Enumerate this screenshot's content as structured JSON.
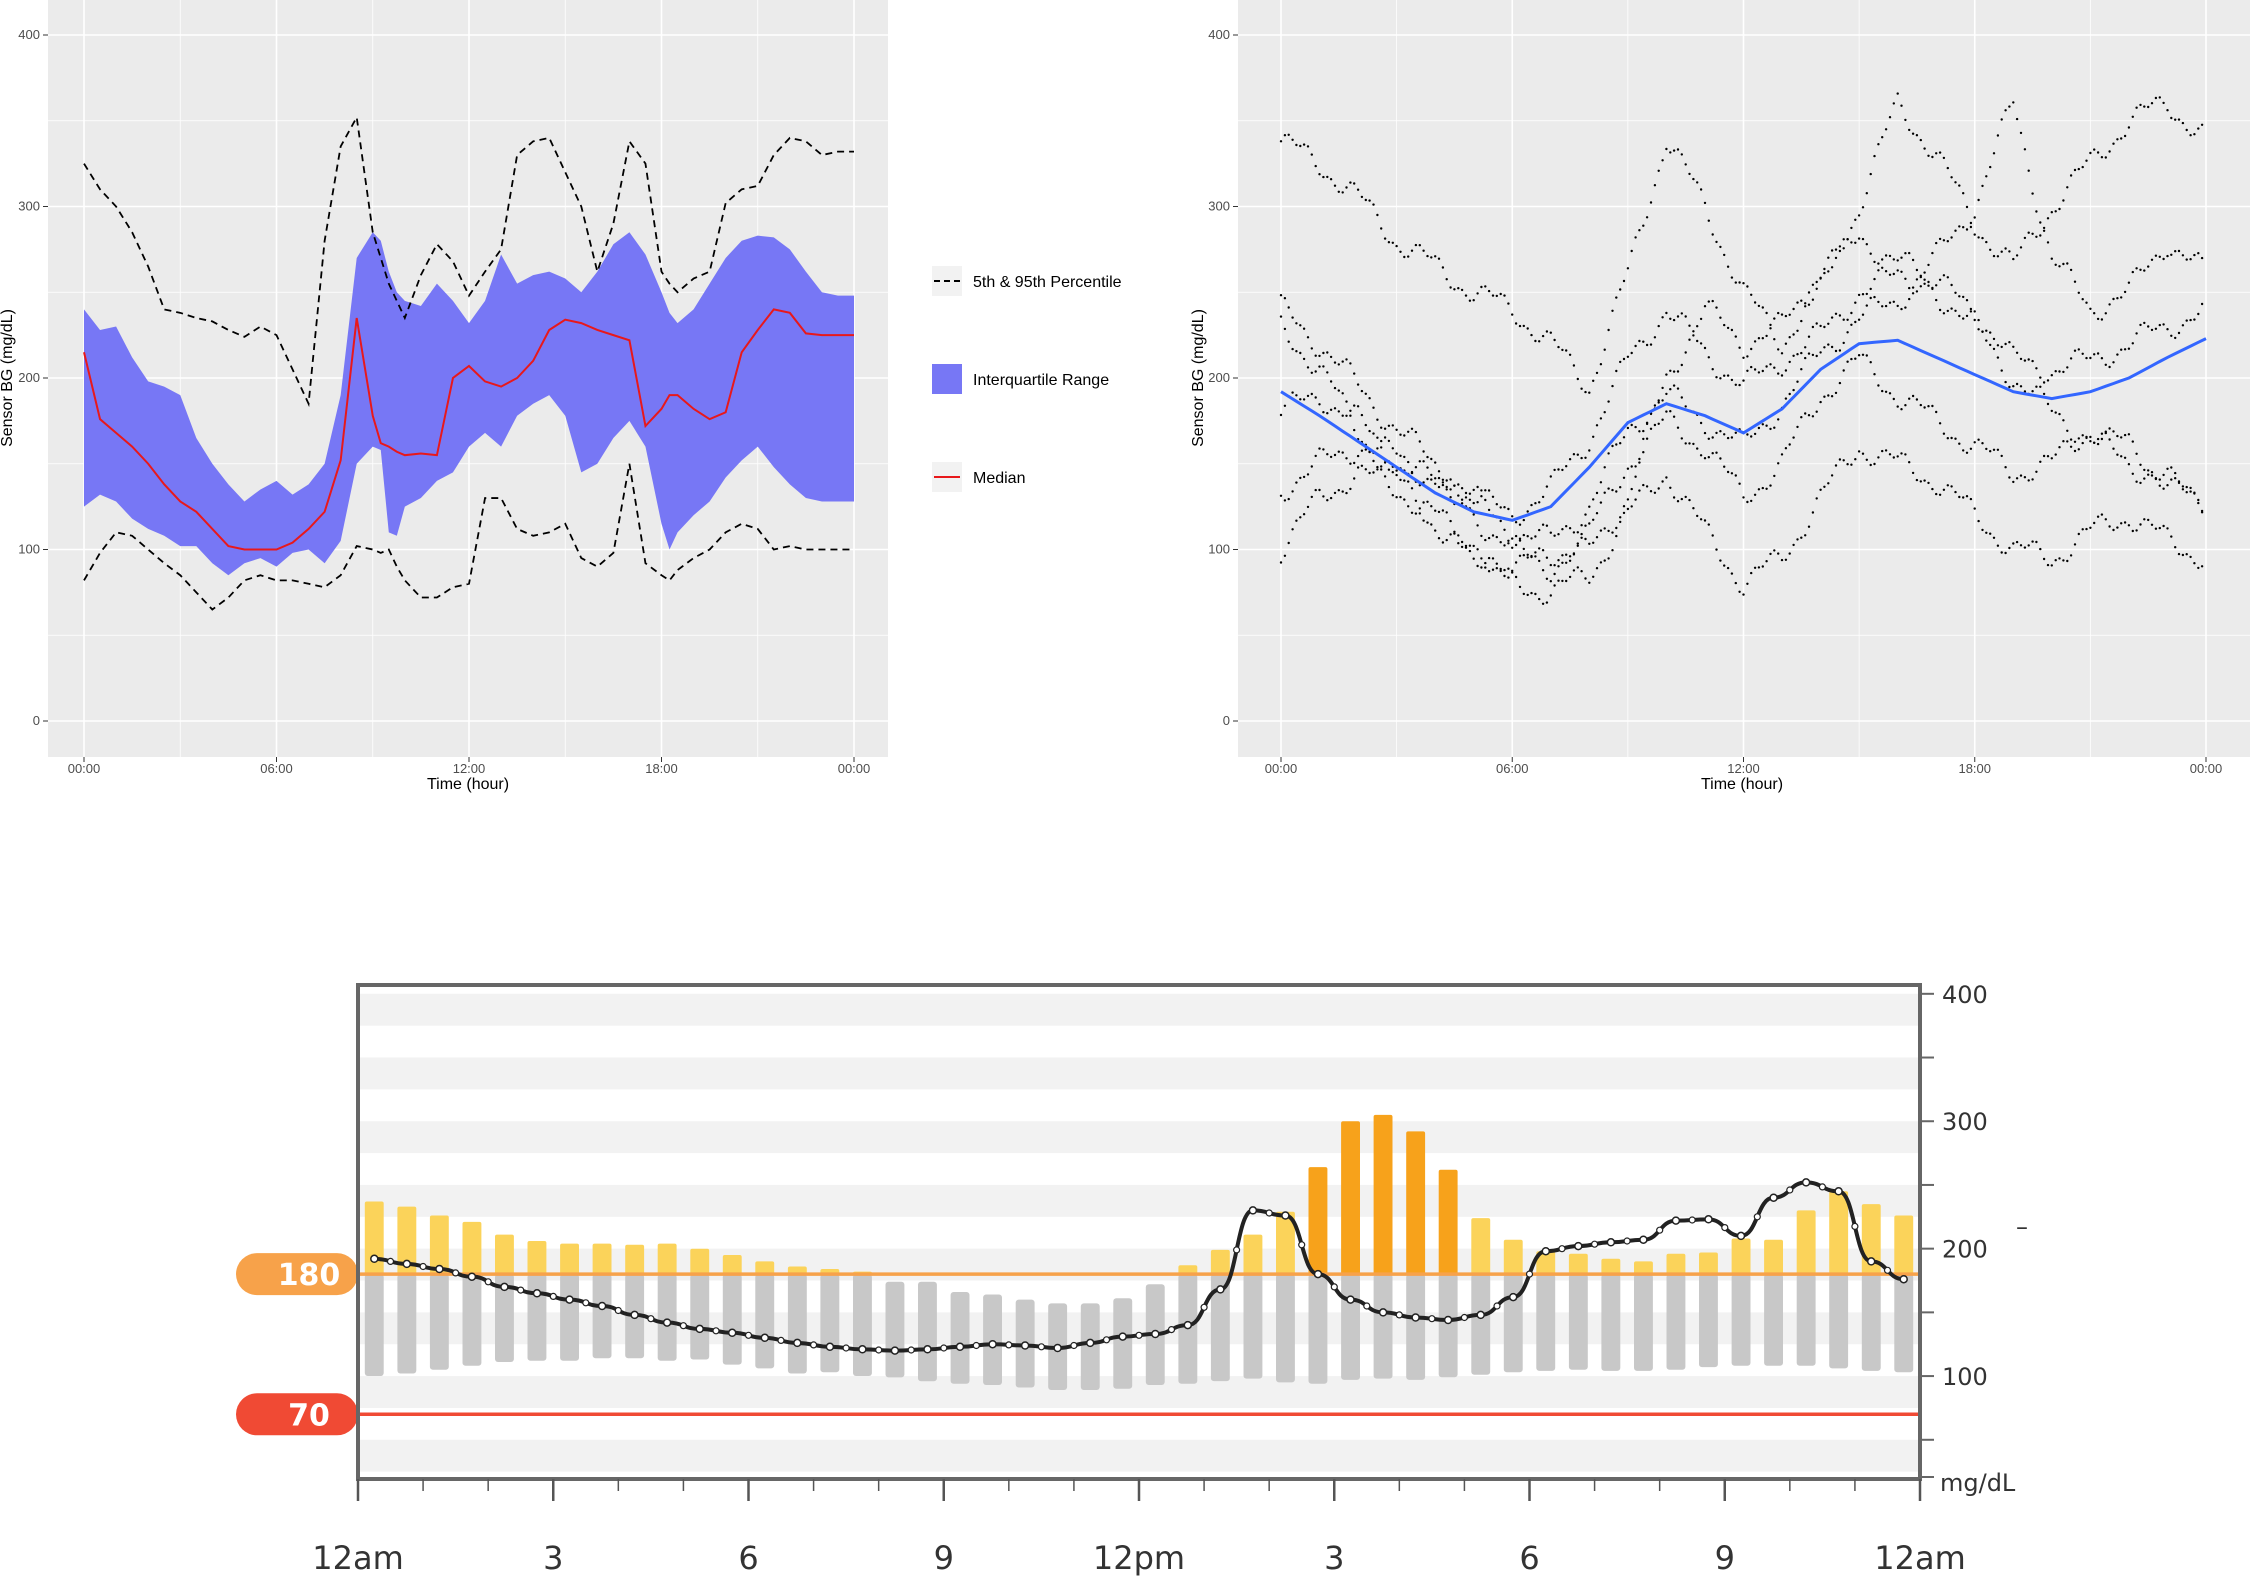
{
  "chart_data": [
    {
      "type": "area",
      "xlabel": "Time (hour)",
      "ylabel": "Sensor BG (mg/dL)",
      "xlim": [
        0,
        24
      ],
      "ylim": [
        0,
        400
      ],
      "x_ticks": [
        "00:00",
        "06:00",
        "12:00",
        "18:00",
        "00:00"
      ],
      "x_tick_values": [
        0,
        6,
        12,
        18,
        24
      ],
      "y_ticks": [
        "0",
        "100",
        "200",
        "300",
        "400"
      ],
      "y_tick_values": [
        0,
        100,
        200,
        300,
        400
      ],
      "grid": true,
      "legend_position": "right",
      "legend": [
        "5th & 95th Percentile",
        "Interquartile Range",
        "Median"
      ],
      "colors": {
        "band": "#7777f5",
        "median": "#e8181b",
        "percentile": "#000000",
        "panel": "#ebebeb"
      },
      "hours": [
        0,
        0.5,
        1,
        1.5,
        2,
        2.5,
        3,
        3.5,
        4,
        4.5,
        5,
        5.5,
        6,
        6.5,
        7,
        7.5,
        8,
        8.5,
        9,
        9.25,
        9.5,
        9.75,
        10,
        10.5,
        11,
        11.5,
        12,
        12.5,
        13,
        13.5,
        14,
        14.5,
        15,
        15.5,
        16,
        16.5,
        17,
        17.5,
        18,
        18.25,
        18.5,
        19,
        19.5,
        20,
        20.5,
        21,
        21.5,
        22,
        22.5,
        23,
        23.5,
        24
      ],
      "p95": [
        325,
        310,
        300,
        285,
        265,
        240,
        238,
        235,
        233,
        228,
        224,
        230,
        225,
        205,
        185,
        280,
        335,
        352,
        285,
        270,
        255,
        245,
        235,
        260,
        278,
        268,
        248,
        262,
        275,
        330,
        338,
        340,
        320,
        300,
        262,
        290,
        338,
        325,
        262,
        255,
        250,
        258,
        262,
        302,
        310,
        312,
        330,
        340,
        338,
        330,
        332,
        332
      ],
      "p75": [
        240,
        228,
        230,
        212,
        198,
        195,
        190,
        165,
        150,
        138,
        128,
        135,
        140,
        132,
        138,
        150,
        190,
        270,
        285,
        280,
        262,
        250,
        245,
        242,
        255,
        245,
        232,
        245,
        272,
        255,
        260,
        262,
        258,
        250,
        262,
        278,
        285,
        272,
        250,
        238,
        232,
        240,
        255,
        270,
        280,
        283,
        282,
        275,
        262,
        250,
        248,
        248
      ],
      "median": [
        215,
        176,
        168,
        160,
        150,
        138,
        128,
        122,
        112,
        102,
        100,
        100,
        100,
        104,
        112,
        122,
        152,
        235,
        178,
        162,
        160,
        157,
        155,
        156,
        155,
        200,
        207,
        198,
        195,
        200,
        210,
        228,
        234,
        232,
        228,
        225,
        222,
        172,
        182,
        190,
        190,
        182,
        176,
        180,
        215,
        228,
        240,
        238,
        226,
        225,
        225,
        225
      ],
      "p25": [
        125,
        132,
        128,
        118,
        112,
        108,
        102,
        102,
        92,
        85,
        92,
        95,
        90,
        98,
        100,
        92,
        105,
        150,
        160,
        158,
        110,
        108,
        125,
        130,
        140,
        145,
        160,
        168,
        160,
        178,
        185,
        190,
        178,
        145,
        150,
        165,
        175,
        160,
        115,
        100,
        110,
        120,
        128,
        142,
        152,
        160,
        148,
        138,
        130,
        128,
        128,
        128
      ],
      "p5": [
        82,
        98,
        110,
        108,
        100,
        92,
        85,
        75,
        65,
        72,
        82,
        85,
        82,
        82,
        80,
        78,
        85,
        102,
        100,
        98,
        100,
        90,
        82,
        72,
        72,
        78,
        80,
        130,
        130,
        112,
        108,
        110,
        115,
        95,
        90,
        98,
        150,
        92,
        85,
        82,
        88,
        95,
        100,
        110,
        115,
        112,
        100,
        102,
        100,
        100,
        100,
        100
      ]
    },
    {
      "type": "scatter",
      "xlabel": "Time (hour)",
      "ylabel": "Sensor BG (mg/dL)",
      "xlim": [
        0,
        24
      ],
      "ylim": [
        0,
        400
      ],
      "x_ticks": [
        "00:00",
        "06:00",
        "12:00",
        "18:00",
        "00:00"
      ],
      "x_tick_values": [
        0,
        6,
        12,
        18,
        24
      ],
      "y_ticks": [
        "0",
        "100",
        "200",
        "300",
        "400"
      ],
      "y_tick_values": [
        0,
        100,
        200,
        300,
        400
      ],
      "grid": true,
      "colors": {
        "points": "#000000",
        "smooth": "#3366ff",
        "panel": "#ebebeb"
      },
      "smooth_x": [
        0,
        1,
        2,
        3,
        4,
        5,
        6,
        7,
        8,
        9,
        10,
        11,
        12,
        13,
        14,
        15,
        16,
        17,
        18,
        19,
        20,
        21,
        22,
        23,
        24
      ],
      "smooth_y": [
        192,
        178,
        163,
        148,
        133,
        122,
        117,
        125,
        148,
        174,
        185,
        178,
        168,
        182,
        205,
        220,
        222,
        212,
        202,
        192,
        188,
        192,
        200,
        212,
        223
      ],
      "traces": [
        {
          "x": [
            0,
            1,
            2,
            3,
            4,
            5,
            6,
            7,
            8,
            9,
            10,
            11,
            12,
            13,
            14,
            15,
            16,
            17,
            18,
            19,
            20,
            21,
            22,
            23,
            24
          ],
          "y": [
            338,
            325,
            305,
            280,
            265,
            250,
            240,
            220,
            195,
            260,
            340,
            300,
            250,
            220,
            255,
            300,
            360,
            330,
            290,
            265,
            300,
            325,
            350,
            360,
            340
          ]
        },
        {
          "x": [
            0,
            1,
            2,
            3,
            4,
            5,
            6,
            7,
            8,
            9,
            10,
            11,
            12,
            13,
            14,
            15,
            16,
            17,
            18,
            19,
            20,
            21,
            22,
            23,
            24
          ],
          "y": [
            240,
            220,
            195,
            170,
            150,
            130,
            110,
            105,
            125,
            170,
            190,
            175,
            160,
            185,
            215,
            235,
            245,
            270,
            300,
            360,
            270,
            240,
            250,
            280,
            260
          ]
        },
        {
          "x": [
            0,
            1,
            2,
            3,
            4,
            5,
            6,
            7,
            8,
            9,
            10,
            11,
            12,
            13,
            14,
            15,
            16,
            17,
            18,
            19,
            20,
            21,
            22,
            23,
            24
          ],
          "y": [
            230,
            205,
            170,
            140,
            115,
            95,
            90,
            95,
            110,
            150,
            175,
            160,
            130,
            150,
            190,
            210,
            190,
            175,
            160,
            145,
            150,
            170,
            160,
            140,
            120
          ]
        },
        {
          "x": [
            0,
            1,
            2,
            3,
            4,
            5,
            6,
            7,
            8,
            9,
            10,
            11,
            12,
            13,
            14,
            15,
            16,
            17,
            18,
            19,
            20,
            21,
            22,
            23,
            24
          ],
          "y": [
            135,
            150,
            160,
            155,
            140,
            120,
            100,
            90,
            100,
            130,
            200,
            240,
            220,
            230,
            260,
            280,
            270,
            250,
            230,
            200,
            180,
            165,
            150,
            140,
            130
          ]
        },
        {
          "x": [
            0,
            1,
            2,
            3,
            4,
            5,
            6,
            7,
            8,
            9,
            10,
            11,
            12,
            13,
            14,
            15,
            16,
            17,
            18,
            19,
            20,
            21,
            22,
            23,
            24
          ],
          "y": [
            100,
            130,
            145,
            135,
            120,
            100,
            80,
            75,
            85,
            120,
            145,
            110,
            80,
            95,
            130,
            160,
            150,
            140,
            120,
            100,
            95,
            110,
            120,
            105,
            95
          ]
        },
        {
          "x": [
            0,
            1,
            2,
            3,
            4,
            5,
            6,
            7,
            8,
            9,
            10,
            11,
            12,
            13,
            14,
            15,
            16,
            17,
            18,
            19,
            20,
            21,
            22,
            23,
            24
          ],
          "y": [
            180,
            190,
            175,
            150,
            140,
            130,
            120,
            135,
            165,
            210,
            240,
            215,
            195,
            210,
            225,
            250,
            260,
            255,
            240,
            210,
            205,
            210,
            220,
            230,
            240
          ]
        }
      ]
    },
    {
      "type": "bar",
      "subtype": "floating range bars with median line",
      "xlim": [
        0,
        24
      ],
      "ylim": [
        0,
        400
      ],
      "x_ticks": [
        "12am",
        "3",
        "6",
        "9",
        "12pm",
        "3",
        "6",
        "9",
        "12am"
      ],
      "x_tick_values": [
        0,
        3,
        6,
        9,
        12,
        15,
        18,
        21,
        24
      ],
      "y_ticks": [
        "100",
        "200",
        "300",
        "400"
      ],
      "y_tick_values": [
        100,
        200,
        300,
        400
      ],
      "y_unit": "mg/dL",
      "right_marker": "–",
      "thresholds": [
        {
          "label": "180",
          "value": 180,
          "color": "#f7a24a"
        },
        {
          "label": "70",
          "value": 70,
          "color": "#f04a34"
        }
      ],
      "colors": {
        "low_part": "#c8c8c8",
        "high_light": "#fbd35a",
        "high_dark": "#f7a21b",
        "median": "#222222",
        "frame": "#666666"
      },
      "bins": 48,
      "high": [
        237,
        233,
        226,
        221,
        211,
        206,
        204,
        204,
        203,
        204,
        200,
        195,
        190,
        186,
        184,
        182,
        174,
        174,
        166,
        164,
        160,
        157,
        157,
        161,
        172,
        187,
        199,
        211,
        229,
        264,
        300,
        305,
        292,
        262,
        224,
        207,
        198,
        196,
        192,
        190,
        196,
        197,
        208,
        207,
        230,
        245,
        235,
        226
      ],
      "low": [
        100,
        102,
        105,
        108,
        111,
        112,
        112,
        114,
        114,
        112,
        113,
        109,
        106,
        102,
        103,
        100,
        99,
        96,
        94,
        93,
        91,
        89,
        89,
        90,
        93,
        94,
        96,
        98,
        95,
        94,
        97,
        98,
        97,
        99,
        101,
        103,
        104,
        105,
        104,
        104,
        105,
        107,
        108,
        108,
        108,
        106,
        104,
        103
      ],
      "median": [
        192,
        188,
        184,
        178,
        170,
        165,
        160,
        155,
        148,
        142,
        137,
        134,
        130,
        126,
        123,
        121,
        120,
        121,
        123,
        125,
        124,
        122,
        126,
        131,
        133,
        140,
        168,
        230,
        226,
        180,
        160,
        150,
        146,
        144,
        148,
        162,
        198,
        202,
        205,
        207,
        222,
        223,
        210,
        240,
        252,
        245,
        190,
        176
      ]
    }
  ]
}
